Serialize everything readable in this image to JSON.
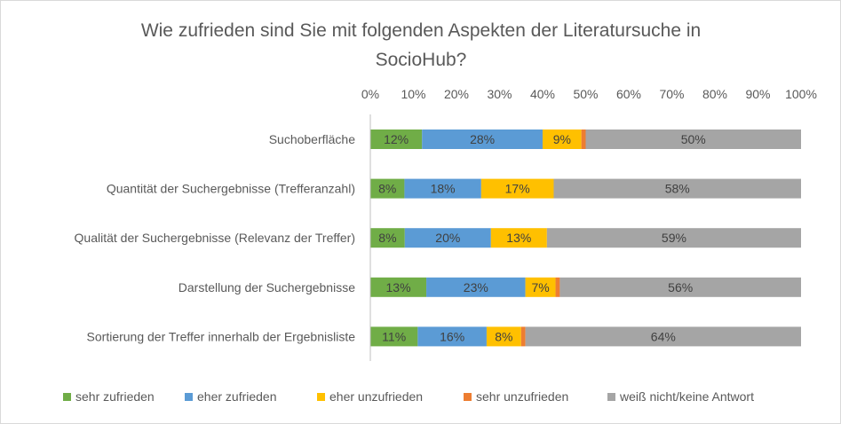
{
  "chart_data": {
    "type": "bar",
    "orientation": "horizontal",
    "stacked": "percent",
    "title": "Wie zufrieden sind Sie mit folgenden Aspekten der Literatursuche in SocioHub?",
    "title_lines": [
      "Wie zufrieden sind Sie mit folgenden Aspekten der Literatursuche in",
      "SocioHub?"
    ],
    "xlim": [
      0,
      100
    ],
    "x_ticks": [
      "0%",
      "10%",
      "20%",
      "30%",
      "40%",
      "50%",
      "60%",
      "70%",
      "80%",
      "90%",
      "100%"
    ],
    "x_axis_position": "top",
    "grid": false,
    "legend_position": "bottom",
    "categories": [
      "Suchoberfläche",
      "Quantität der Suchergebnisse (Trefferanzahl)",
      "Qualität der Suchergebnisse (Relevanz der Treffer)",
      "Darstellung der Suchergebnisse",
      "Sortierung der Treffer innerhalb der Ergebnisliste"
    ],
    "series": [
      {
        "name": "sehr zufrieden",
        "color": "#70ad47",
        "values": [
          12,
          8,
          8,
          13,
          11
        ],
        "labels": [
          "12%",
          "8%",
          "8%",
          "13%",
          "11%"
        ]
      },
      {
        "name": "eher zufrieden",
        "color": "#5b9bd5",
        "values": [
          28,
          18,
          20,
          23,
          16
        ],
        "labels": [
          "28%",
          "18%",
          "20%",
          "23%",
          "16%"
        ]
      },
      {
        "name": "eher unzufrieden",
        "color": "#ffc000",
        "values": [
          9,
          17,
          13,
          7,
          8
        ],
        "labels": [
          "9%",
          "17%",
          "13%",
          "7%",
          "8%"
        ]
      },
      {
        "name": "sehr unzufrieden",
        "color": "#ed7d31",
        "values": [
          1,
          0,
          0,
          1,
          1
        ],
        "labels": [
          "",
          "",
          "",
          "",
          ""
        ]
      },
      {
        "name": "weiß nicht/keine Antwort",
        "color": "#a5a5a5",
        "values": [
          50,
          58,
          59,
          56,
          64
        ],
        "labels": [
          "50%",
          "58%",
          "59%",
          "56%",
          "64%"
        ]
      }
    ]
  }
}
